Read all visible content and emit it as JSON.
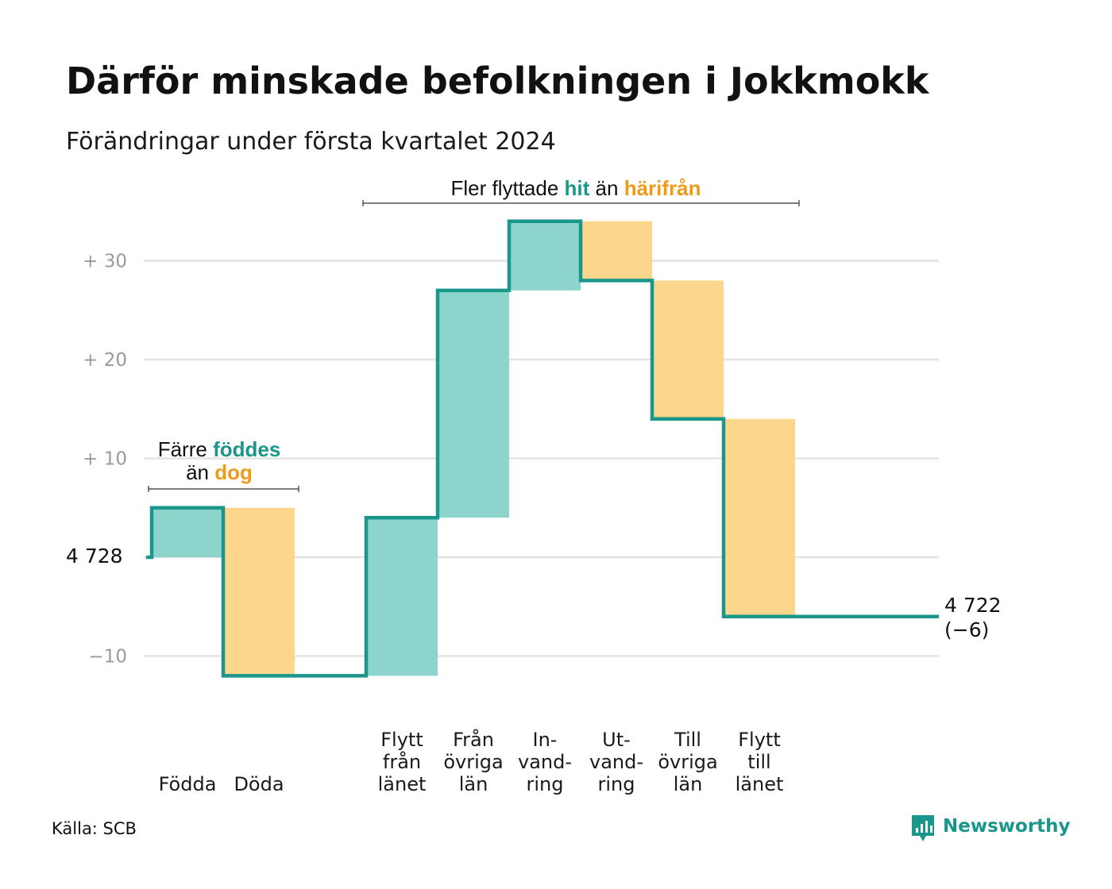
{
  "title": "Därför minskade befolkningen i Jokkmokk",
  "subtitle": "Förändringar under första kvartalet 2024",
  "colors": {
    "increase_fill": "#8dd5cc",
    "decrease_fill": "#fbd68c",
    "line": "#1a968a",
    "accent_green": "#1a968a",
    "accent_orange": "#f09a1a",
    "grid": "#e3e3e3"
  },
  "annotations": {
    "births": {
      "line1_prefix": "Färre",
      "line1_em": "föddes",
      "line2_prefix": "än",
      "line2_em": "dog"
    },
    "migration": {
      "prefix": "Fler flyttade",
      "em1": "hit",
      "mid": "än",
      "em2": "härifrån"
    }
  },
  "chart_data": {
    "type": "waterfall",
    "title": "Därför minskade befolkningen i Jokkmokk",
    "subtitle": "Förändringar under första kvartalet 2024",
    "start_value": 4728,
    "start_label": "4 728",
    "end_value": 4722,
    "end_label": "4 722",
    "end_change_label": "(−6)",
    "ylim": [
      -14,
      35
    ],
    "y_ticks": [
      {
        "value": 30,
        "label": "+ 30"
      },
      {
        "value": 20,
        "label": "+ 20"
      },
      {
        "value": 10,
        "label": "+ 10"
      },
      {
        "value": -10,
        "label": "−10"
      }
    ],
    "grid": true,
    "categories": [
      {
        "lines": [
          "Födda"
        ],
        "change": 5
      },
      {
        "lines": [
          "Döda"
        ],
        "change": -17
      },
      {
        "lines": [],
        "change": 0
      },
      {
        "lines": [
          "Flytt",
          "från",
          "länet"
        ],
        "change": 16
      },
      {
        "lines": [
          "Från",
          "övriga",
          "län"
        ],
        "change": 23
      },
      {
        "lines": [
          "In-",
          "vand-",
          "ring"
        ],
        "change": 7
      },
      {
        "lines": [
          "Ut-",
          "vand-",
          "ring"
        ],
        "change": -6
      },
      {
        "lines": [
          "Till",
          "övriga",
          "län"
        ],
        "change": -14
      },
      {
        "lines": [
          "Flytt",
          "till",
          "länet"
        ],
        "change": -20
      }
    ]
  },
  "footer": {
    "source": "Källa: SCB",
    "brand": "Newsworthy",
    "brand_icon": "newsworthy-logo-icon"
  }
}
